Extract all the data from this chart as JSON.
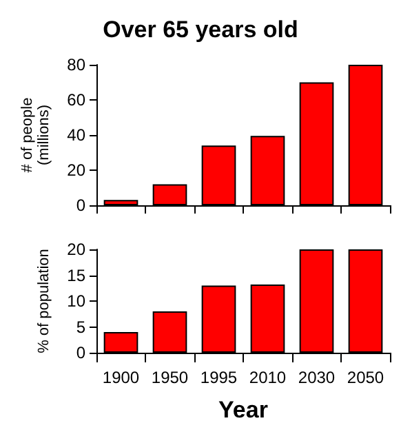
{
  "chart_data": [
    {
      "type": "bar",
      "title": "Over 65 years old",
      "ylabel": "# of people\n(millions)",
      "categories": [
        "1900",
        "1950",
        "1995",
        "2010",
        "2030",
        "2050"
      ],
      "values": [
        3,
        12,
        34,
        39.5,
        70,
        80
      ],
      "color": "#ff0000",
      "ylim": [
        0,
        80
      ],
      "yticks": [
        0,
        20,
        40,
        60,
        80
      ],
      "grid": false,
      "tick_labels": "y"
    },
    {
      "type": "bar",
      "xlabel": "Year",
      "ylabel": "% of population",
      "categories": [
        "1900",
        "1950",
        "1995",
        "2010",
        "2030",
        "2050"
      ],
      "values": [
        4,
        8,
        13,
        13.2,
        20,
        20
      ],
      "color": "#ff0000",
      "ylim": [
        0,
        20
      ],
      "yticks": [
        0,
        5,
        10,
        15,
        20
      ],
      "grid": false
    }
  ]
}
